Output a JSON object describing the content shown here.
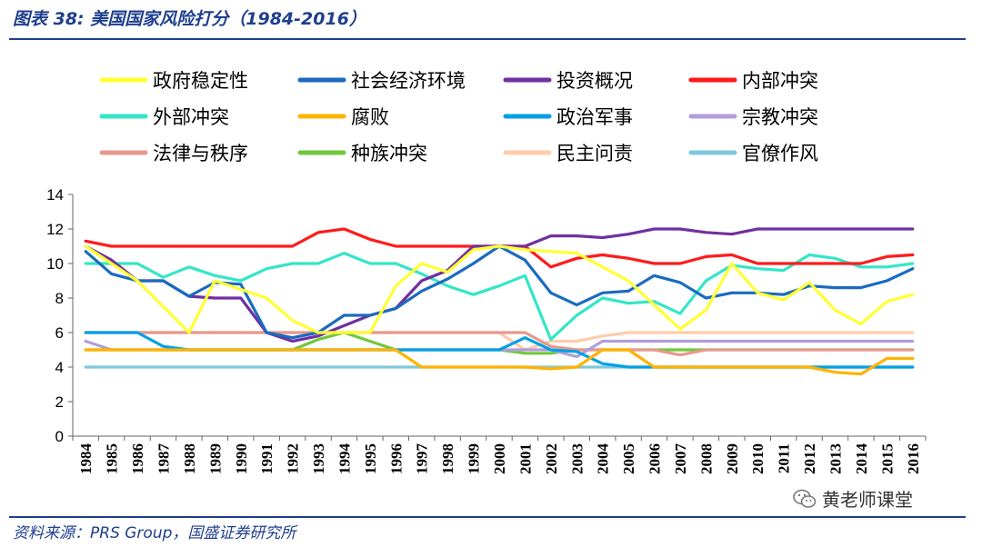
{
  "figure_title": "图表 38:  美国国家风险打分（1984-2016）",
  "source_note": "资料来源：PRS Group，国盛证券研究所",
  "watermark": "黄老师课堂",
  "chart_data": {
    "type": "line",
    "title": "",
    "xlabel": "",
    "ylabel": "",
    "ylim": [
      0,
      14
    ],
    "yticks": [
      0,
      2,
      4,
      6,
      8,
      10,
      12,
      14
    ],
    "grid": false,
    "legend_position": "top",
    "x": [
      "1984",
      "1985",
      "1986",
      "1987",
      "1988",
      "1989",
      "1990",
      "1991",
      "1992",
      "1993",
      "1994",
      "1995",
      "1996",
      "1997",
      "1998",
      "1999",
      "2000",
      "2001",
      "2002",
      "2003",
      "2004",
      "2005",
      "2006",
      "2007",
      "2008",
      "2009",
      "2010",
      "2011",
      "2012",
      "2013",
      "2014",
      "2015",
      "2016"
    ],
    "series": [
      {
        "name": "政府稳定性",
        "color": "#ffff33",
        "values": [
          11,
          10,
          9,
          7.5,
          6,
          9,
          8.5,
          8,
          6.7,
          6,
          6,
          6,
          8.7,
          10,
          9.5,
          10.8,
          11,
          10.8,
          10.7,
          10.6,
          9.8,
          9,
          7.6,
          6.2,
          7.3,
          10,
          8.3,
          7.9,
          8.9,
          7.3,
          6.5,
          7.8,
          8.2
        ]
      },
      {
        "name": "社会经济环境",
        "color": "#1a6bbf",
        "values": [
          10.7,
          9.4,
          9,
          9,
          8.1,
          8.9,
          8.8,
          6,
          5.7,
          6,
          7,
          7,
          7.4,
          8.4,
          9.1,
          10,
          11,
          10.2,
          8.3,
          7.6,
          8.3,
          8.4,
          9.3,
          8.9,
          8,
          8.3,
          8.3,
          8.2,
          8.7,
          8.6,
          8.6,
          9,
          9.7
        ]
      },
      {
        "name": "投资概况",
        "color": "#7030a0",
        "values": [
          11,
          10.2,
          9,
          9,
          8.1,
          8,
          8,
          6,
          5.5,
          5.8,
          6.4,
          7,
          7.4,
          9,
          9.6,
          11,
          11,
          11,
          11.6,
          11.6,
          11.5,
          11.7,
          12,
          12,
          11.8,
          11.7,
          12,
          12,
          12,
          12,
          12,
          12,
          12
        ]
      },
      {
        "name": "内部冲突",
        "color": "#ff1a1a",
        "values": [
          11.3,
          11,
          11,
          11,
          11,
          11,
          11,
          11,
          11,
          11.8,
          12,
          11.4,
          11,
          11,
          11,
          11,
          11,
          11,
          9.8,
          10.3,
          10.5,
          10.3,
          10,
          10,
          10.4,
          10.5,
          10,
          10,
          10,
          10,
          10,
          10.4,
          10.5
        ]
      },
      {
        "name": "外部冲突",
        "color": "#33e6c8",
        "values": [
          10,
          10,
          10,
          9.2,
          9.8,
          9.3,
          9,
          9.7,
          10,
          10,
          10.6,
          10,
          10,
          9.4,
          8.7,
          8.2,
          8.7,
          9.3,
          5.6,
          7,
          8,
          7.7,
          7.8,
          7.1,
          9,
          9.9,
          9.7,
          9.6,
          10.5,
          10.3,
          9.8,
          9.8,
          10
        ]
      },
      {
        "name": "腐败",
        "color": "#ffb300",
        "values": [
          5,
          5,
          5,
          5,
          5,
          5,
          5,
          5,
          5,
          5,
          5,
          5,
          5,
          4,
          4,
          4,
          4,
          4,
          3.9,
          4,
          5,
          5,
          4,
          4,
          4,
          4,
          4,
          4,
          4,
          3.7,
          3.6,
          4.5,
          4.5
        ]
      },
      {
        "name": "政治军事",
        "color": "#00a0e6",
        "values": [
          6,
          6,
          6,
          5.2,
          5,
          5,
          5,
          5,
          5,
          5,
          5,
          5,
          5,
          5,
          5,
          5,
          5,
          5.7,
          5,
          4.9,
          4.2,
          4,
          4,
          4,
          4,
          4,
          4,
          4,
          4,
          4,
          4,
          4,
          4
        ]
      },
      {
        "name": "宗教冲突",
        "color": "#b39ddb",
        "values": [
          5.5,
          5,
          5,
          5,
          5,
          5,
          5,
          5,
          5,
          5,
          5,
          5,
          5,
          5,
          5,
          5,
          5,
          5,
          5,
          4.6,
          5.5,
          5.5,
          5.5,
          5.5,
          5.5,
          5.5,
          5.5,
          5.5,
          5.5,
          5.5,
          5.5,
          5.5,
          5.5
        ]
      },
      {
        "name": "法律与秩序",
        "color": "#e6998c",
        "values": [
          6,
          6,
          6,
          6,
          6,
          6,
          6,
          6,
          6,
          6,
          6,
          6,
          6,
          6,
          6,
          6,
          6,
          6,
          5.2,
          5,
          5,
          5,
          5,
          4.7,
          5,
          5,
          5,
          5,
          5,
          5,
          5,
          5,
          5
        ]
      },
      {
        "name": "种族冲突",
        "color": "#70c83c",
        "values": [
          5,
          5,
          5,
          5,
          5,
          5,
          5,
          5,
          5,
          5.6,
          6,
          5.5,
          5,
          5,
          5,
          5,
          5,
          4.8,
          4.8,
          5,
          5,
          5,
          5,
          5,
          5,
          5,
          5,
          5,
          5,
          5,
          5,
          5,
          5
        ]
      },
      {
        "name": "民主问责",
        "color": "#ffccaa",
        "values": [
          6,
          6,
          6,
          6,
          6,
          6,
          6,
          6,
          6,
          6,
          6,
          6,
          6,
          6,
          6,
          6,
          6,
          5,
          5.5,
          5.5,
          5.8,
          6,
          6,
          6,
          6,
          6,
          6,
          6,
          6,
          6,
          6,
          6,
          6
        ]
      },
      {
        "name": "官僚作风",
        "color": "#7ec8dc",
        "values": [
          4,
          4,
          4,
          4,
          4,
          4,
          4,
          4,
          4,
          4,
          4,
          4,
          4,
          4,
          4,
          4,
          4,
          4,
          4,
          4,
          4,
          4,
          4,
          4,
          4,
          4,
          4,
          4,
          4,
          4,
          4,
          4,
          4
        ]
      }
    ]
  }
}
